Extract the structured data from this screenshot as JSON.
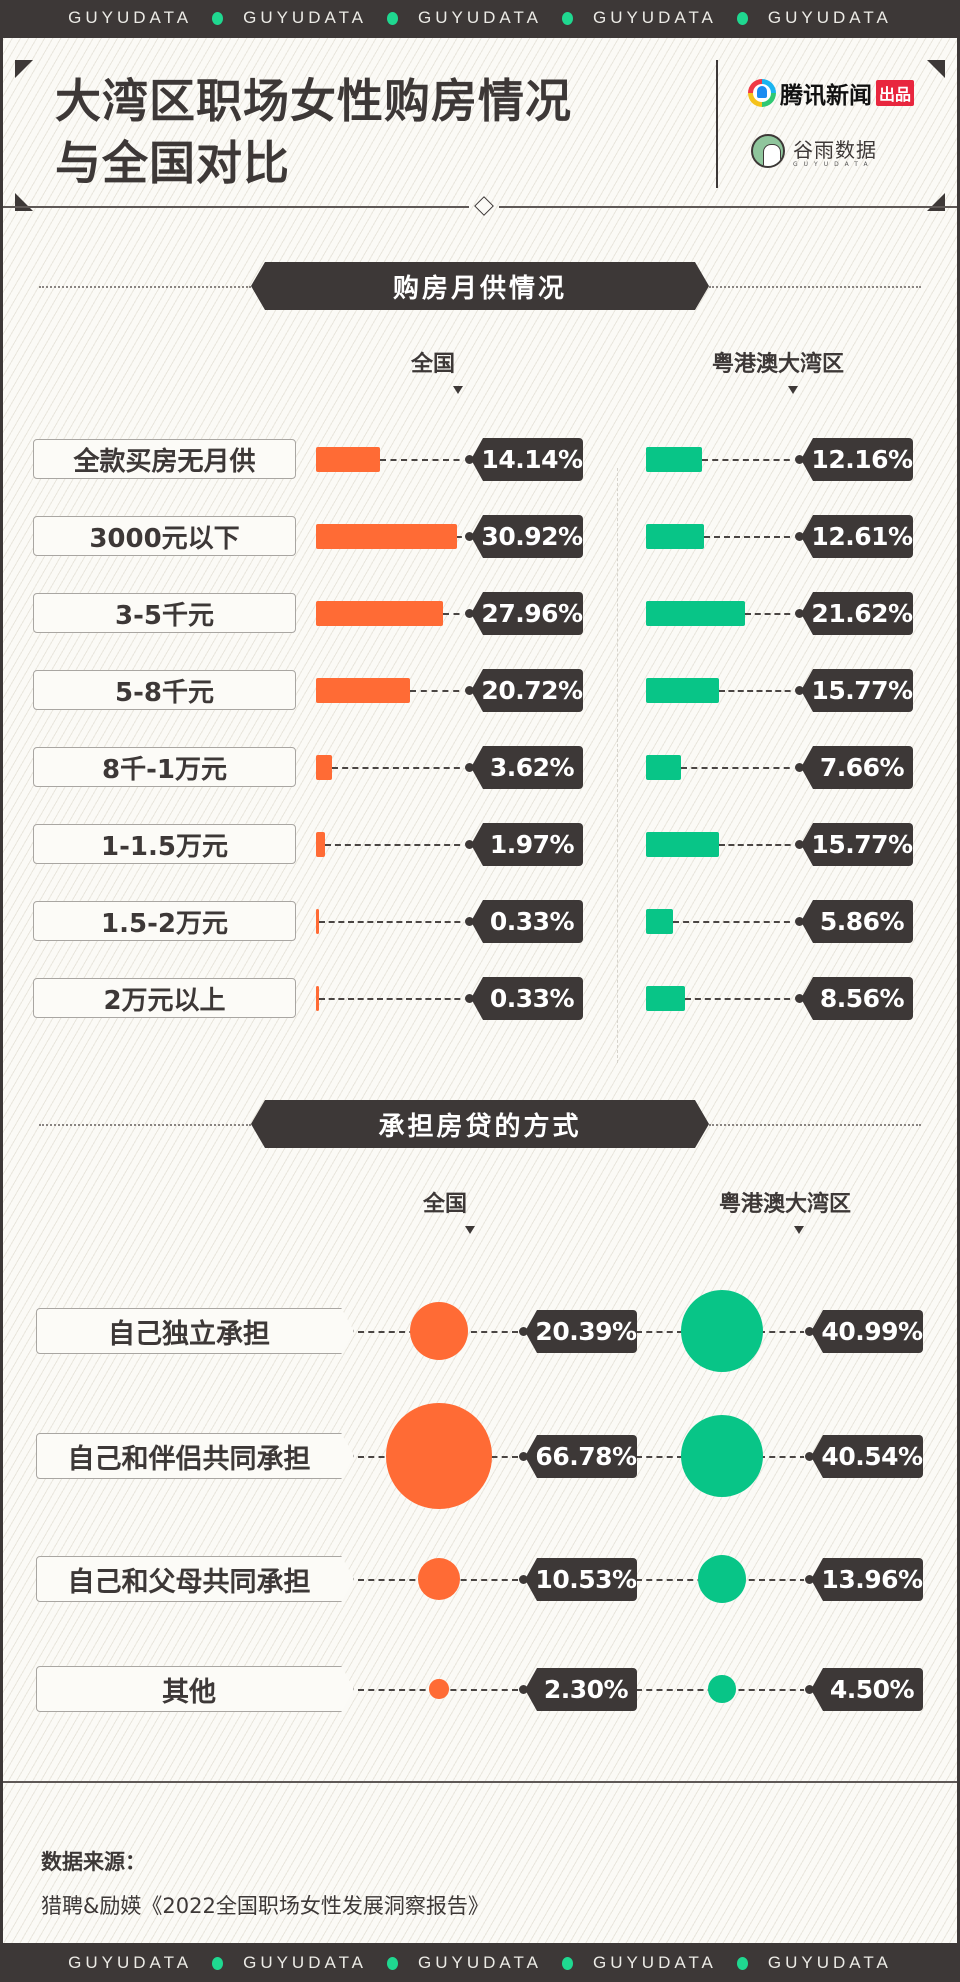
{
  "ticker": {
    "word": "GUYUDATA",
    "dot_color": "#1fd890",
    "items": [
      "GUYUDATA",
      "GUYUDATA",
      "GUYUDATA",
      "GUYUDATA",
      "GUYUDATA"
    ]
  },
  "header": {
    "title_line1": "大湾区职场女性购房情况",
    "title_line2": "与全国对比",
    "logo1_name": "腾讯新闻",
    "logo1_badge": "出品",
    "logo2_cn": "谷雨数据",
    "logo2_en": "GUYUDATA"
  },
  "colors": {
    "national": "#ff6b35",
    "gba": "#08c587",
    "dark": "#3d3837",
    "background": "#fbfaf6"
  },
  "section1": {
    "title": "购房月供情况",
    "col_national": "全国",
    "col_gba": "粤港澳大湾区"
  },
  "section2": {
    "title": "承担房贷的方式",
    "col_national": "全国",
    "col_gba": "粤港澳大湾区"
  },
  "chart_data": [
    {
      "type": "bar",
      "title": "购房月供情况",
      "categories": [
        "全款买房无月供",
        "3000元以下",
        "3-5千元",
        "5-8千元",
        "8千-1万元",
        "1-1.5万元",
        "1.5-2万元",
        "2万元以上"
      ],
      "series": [
        {
          "name": "全国",
          "values": [
            14.14,
            30.92,
            27.96,
            20.72,
            3.62,
            1.97,
            0.33,
            0.33
          ],
          "labels": [
            "14.14%",
            "30.92%",
            "27.96%",
            "20.72%",
            "3.62%",
            "1.97%",
            "0.33%",
            "0.33%"
          ]
        },
        {
          "name": "粤港澳大湾区",
          "values": [
            12.16,
            12.61,
            21.62,
            15.77,
            7.66,
            15.77,
            5.86,
            8.56
          ],
          "labels": [
            "12.16%",
            "12.61%",
            "21.62%",
            "15.77%",
            "7.66%",
            "15.77%",
            "5.86%",
            "8.56%"
          ]
        }
      ],
      "unit": "%",
      "orientation": "horizontal",
      "grid": false,
      "legend": "column headers"
    },
    {
      "type": "scatter",
      "title": "承担房贷的方式",
      "categories": [
        "自己独立承担",
        "自己和伴侣共同承担",
        "自己和父母共同承担",
        "其他"
      ],
      "series": [
        {
          "name": "全国",
          "values": [
            20.39,
            66.78,
            10.53,
            2.3
          ],
          "labels": [
            "20.39%",
            "66.78%",
            "10.53%",
            "2.30%"
          ]
        },
        {
          "name": "粤港澳大湾区",
          "values": [
            40.99,
            40.54,
            13.96,
            4.5
          ],
          "labels": [
            "40.99%",
            "40.54%",
            "13.96%",
            "4.50%"
          ]
        }
      ],
      "unit": "%",
      "encoding": "bubble area",
      "grid": false
    }
  ],
  "footer": {
    "source_title": "数据来源：",
    "source_text": "猎聘&励媖《2022全国职场女性发展洞察报告》"
  }
}
